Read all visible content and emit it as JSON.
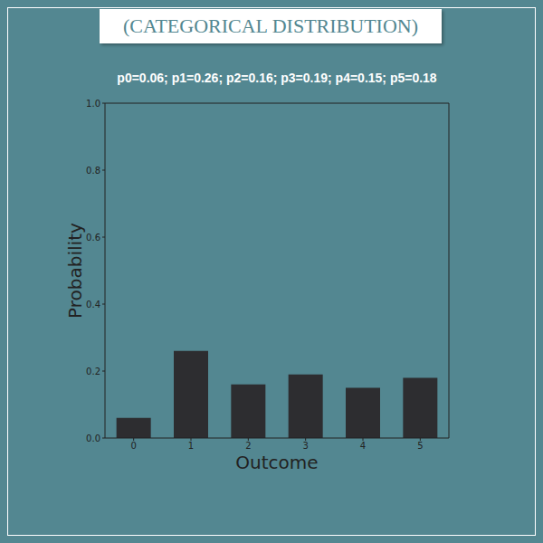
{
  "chart_data": {
    "type": "bar",
    "title": "(CATEGORICAL DISTRIBUTION)",
    "subtitle": "p0=0.06; p1=0.26; p2=0.16; p3=0.19; p4=0.15; p5=0.18",
    "x_label": "Outcome",
    "y_label": "Probability",
    "categories": [
      "0",
      "1",
      "2",
      "3",
      "4",
      "5"
    ],
    "values": [
      0.06,
      0.26,
      0.16,
      0.19,
      0.15,
      0.18
    ],
    "color": "#2d2d30",
    "ylim": [
      0,
      1
    ],
    "yticks": [
      {
        "value": 0,
        "label": "0.0"
      },
      {
        "value": 0.2,
        "label": "0.2"
      },
      {
        "value": 0.4,
        "label": "0.4"
      },
      {
        "value": 0.6,
        "label": "0.6"
      },
      {
        "value": 0.8,
        "label": "0.8"
      },
      {
        "value": 1,
        "label": "1.0"
      }
    ],
    "grid": false
  }
}
